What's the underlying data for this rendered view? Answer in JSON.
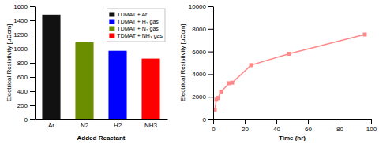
{
  "chart_data": [
    {
      "type": "bar",
      "xlabel": "Added Reactant",
      "ylabel": "Electrical Resistivity [μΩcm]",
      "categories": [
        "Ar",
        "N2",
        "H2",
        "NH3"
      ],
      "stacked": true,
      "series": [
        {
          "name": "TDMAT + Ar",
          "color": "#111111",
          "values": [
            1480,
            null,
            null,
            null
          ]
        },
        {
          "name": "TDMAT + H₂ gas",
          "color": "#0000ff",
          "values": [
            null,
            null,
            970,
            null
          ]
        },
        {
          "name": "TDMAT + N₂ gas",
          "color": "#6b8e00",
          "values": [
            null,
            1090,
            null,
            null
          ]
        },
        {
          "name": "TDMAT + NH₃ gas",
          "color": "#ff0000",
          "values": [
            null,
            null,
            null,
            860
          ]
        }
      ],
      "ylim": [
        0,
        1600
      ],
      "yticks": [
        0,
        200,
        400,
        600,
        800,
        1000,
        1200,
        1400,
        1600
      ],
      "legend": "upper right",
      "grid": false
    },
    {
      "type": "line",
      "xlabel": "Time (hr)",
      "ylabel": "Electrical Resistivity [μΩcm]",
      "x": [
        1,
        2,
        3,
        5,
        10,
        12,
        24,
        48,
        96
      ],
      "values": [
        850,
        1750,
        1900,
        2450,
        3200,
        3250,
        4800,
        5800,
        7500
      ],
      "color": "#ff8888",
      "marker": "square",
      "xlim": [
        0,
        100
      ],
      "xticks": [
        0,
        20,
        40,
        60,
        80,
        100
      ],
      "ylim": [
        0,
        10000
      ],
      "yticks": [
        0,
        2000,
        4000,
        6000,
        8000,
        10000
      ],
      "grid": false
    }
  ]
}
